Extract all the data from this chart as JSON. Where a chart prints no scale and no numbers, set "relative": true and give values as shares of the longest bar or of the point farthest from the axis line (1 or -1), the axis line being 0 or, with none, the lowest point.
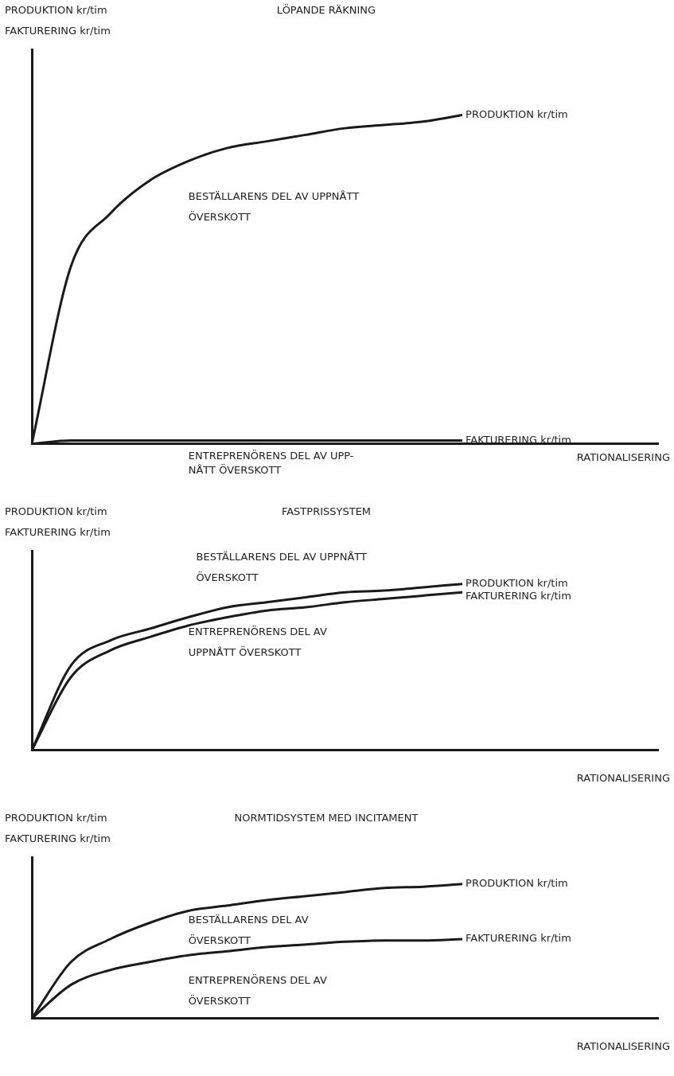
{
  "chart_data": [
    {
      "type": "line",
      "title": "LÖPANDE RÄKNING",
      "ylabel": "PRODUKTION kr/tim\nFAKTURERING kr/tim",
      "xlabel": "RATIONALISERING",
      "relative": true,
      "legend": false,
      "grid": false,
      "marker": "none",
      "categories": [
        null,
        null,
        null,
        null,
        null,
        null,
        null,
        null,
        null,
        null,
        null,
        null,
        null,
        null,
        null,
        null,
        null
      ],
      "series": [
        {
          "name": "PRODUKTION kr/tim",
          "color": "#1a1a1a",
          "values": [
            0,
            0.54,
            0.7,
            0.8,
            0.86,
            0.9,
            0.92,
            0.94,
            0.96,
            0.97,
            0.98,
            1,
            null,
            null,
            null,
            null,
            null
          ]
        },
        {
          "name": "FAKTURERING kr/tim",
          "color": "#1a1a1a",
          "values": [
            0,
            0.01,
            0.01,
            0.01,
            0.01,
            0.01,
            0.01,
            0.01,
            0.01,
            0.01,
            0.01,
            0.01,
            null,
            null,
            null,
            null,
            null
          ]
        }
      ],
      "annotations": [
        "BESTÄLLARENS DEL AV UPPNÅTT\nÖVERSKOTT",
        "ENTREPRENÖRENS DEL AV UPP-\nNÅTT ÖVERSKOTT"
      ]
    },
    {
      "type": "line",
      "title": "FASTPRISSYSTEM",
      "ylabel": "PRODUKTION kr/tim\nFAKTURERING kr/tim",
      "xlabel": "RATIONALISERING",
      "relative": true,
      "legend": false,
      "grid": false,
      "marker": "none",
      "categories": [
        null,
        null,
        null,
        null,
        null,
        null,
        null,
        null,
        null,
        null,
        null,
        null,
        null,
        null,
        null,
        null,
        null
      ],
      "series": [
        {
          "name": "PRODUKTION kr/tim",
          "color": "#1a1a1a",
          "values": [
            0,
            0.51,
            0.66,
            0.73,
            0.8,
            0.86,
            0.89,
            0.92,
            0.95,
            0.96,
            0.98,
            1,
            null,
            null,
            null,
            null,
            null
          ]
        },
        {
          "name": "FAKTURERING kr/tim",
          "color": "#1a1a1a",
          "values": [
            0,
            0.44,
            0.6,
            0.68,
            0.75,
            0.8,
            0.84,
            0.86,
            0.89,
            0.91,
            0.93,
            0.95,
            null,
            null,
            null,
            null,
            null
          ]
        }
      ],
      "annotations": [
        "BESTÄLLARENS DEL AV UPPNÅTT\nÖVERSKOTT",
        "ENTREPRENÖRENS DEL AV\nUPPNÅTT ÖVERSKOTT"
      ]
    },
    {
      "type": "line",
      "title": "NORMTIDSYSTEM MED INCITAMENT",
      "ylabel": "PRODUKTION kr/tim\nFAKTURERING kr/tim",
      "xlabel": "RATIONALISERING",
      "relative": true,
      "legend": false,
      "grid": false,
      "marker": "none",
      "categories": [
        null,
        null,
        null,
        null,
        null,
        null,
        null,
        null,
        null,
        null,
        null,
        null,
        null,
        null,
        null,
        null,
        null
      ],
      "series": [
        {
          "name": "PRODUKTION kr/tim",
          "color": "#1a1a1a",
          "values": [
            0,
            0.42,
            0.59,
            0.71,
            0.8,
            0.84,
            0.88,
            0.91,
            0.94,
            0.97,
            0.98,
            1,
            null,
            null,
            null,
            null,
            null
          ]
        },
        {
          "name": "FAKTURERING kr/tim",
          "color": "#1a1a1a",
          "values": [
            0,
            0.25,
            0.36,
            0.42,
            0.47,
            0.5,
            0.53,
            0.55,
            0.57,
            0.58,
            0.58,
            0.59,
            null,
            null,
            null,
            null,
            null
          ]
        }
      ],
      "annotations": [
        "BESTÄLLARENS DEL AV\nÖVERSKOTT",
        "ENTREPRENÖRENS DEL AV\nÖVERSKOTT"
      ]
    }
  ]
}
